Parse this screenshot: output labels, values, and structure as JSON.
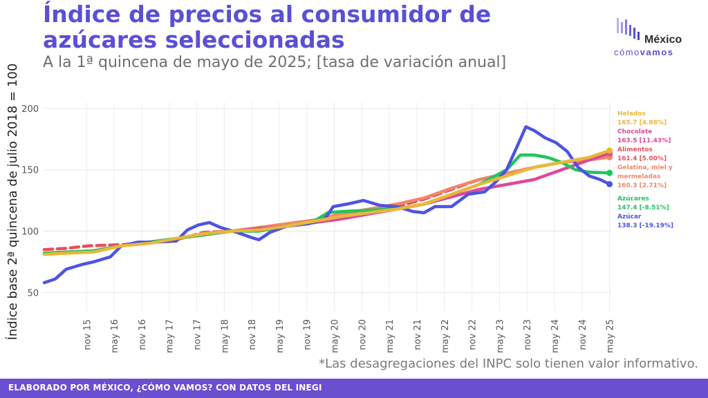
{
  "header": {
    "title_line1": "Índice de precios al consumidor de",
    "title_line2": "azúcares seleccionadas",
    "subtitle": "A la 1ª quincena de mayo de 2025; [tasa de variación anual]"
  },
  "logo": {
    "name_top": "México",
    "name_bottom_a": "cómo",
    "name_bottom_b": "vamos",
    "icon": "bar-waves-icon"
  },
  "note": "*Las desagregaciones del INPC solo tienen valor informativo.",
  "footer": "ELABORADO POR MÉXICO, ¿CÓMO VAMOS? CON DATOS DEL INEGI",
  "colors": {
    "Helados": "#e8b83a",
    "Chocolate": "#e0479b",
    "Alimentos": "#e84f5e",
    "Gelatina, miel y mermeladas": "#f0876a",
    "Azúcares": "#22c55e",
    "Azúcar": "#4c54e0",
    "brand": "#5b4fd6"
  },
  "chart_data": {
    "type": "line",
    "title": "Índice de precios al consumidor de azúcares seleccionadas",
    "subtitle": "A la 1ª quincena de mayo de 2025; [tasa de variación anual]",
    "ylabel": "Índice base 2ª quincena de julio 2018 = 100",
    "xlabel": "",
    "ylim": [
      35,
      205
    ],
    "yticks": [
      50,
      100,
      150,
      200
    ],
    "x_range": [
      2015.1,
      2025.4
    ],
    "x_ticks": [
      {
        "label": "nov 15",
        "t": 2015.87
      },
      {
        "label": "may 16",
        "t": 2016.37
      },
      {
        "label": "nov 16",
        "t": 2016.87
      },
      {
        "label": "may 17",
        "t": 2017.37
      },
      {
        "label": "nov 17",
        "t": 2017.87
      },
      {
        "label": "may 18",
        "t": 2018.37
      },
      {
        "label": "nov 18",
        "t": 2018.87
      },
      {
        "label": "may 19",
        "t": 2019.37
      },
      {
        "label": "nov 19",
        "t": 2019.87
      },
      {
        "label": "may 20",
        "t": 2020.37
      },
      {
        "label": "nov 20",
        "t": 2020.87
      },
      {
        "label": "may 21",
        "t": 2021.37
      },
      {
        "label": "nov 21",
        "t": 2021.87
      },
      {
        "label": "may 22",
        "t": 2022.37
      },
      {
        "label": "nov 22",
        "t": 2022.87
      },
      {
        "label": "may 23",
        "t": 2023.37
      },
      {
        "label": "nov 23",
        "t": 2023.87
      },
      {
        "label": "may 24",
        "t": 2024.37
      },
      {
        "label": "nov 24",
        "t": 2024.87
      },
      {
        "label": "may 25",
        "t": 2025.37
      }
    ],
    "grid": true,
    "legend_position": "right",
    "series": [
      {
        "name": "Alimentos",
        "label_value": "161.4 [5.00%]",
        "dashed": true,
        "points": [
          [
            2015.1,
            85
          ],
          [
            2015.5,
            86
          ],
          [
            2015.9,
            88
          ],
          [
            2016.5,
            89
          ],
          [
            2016.9,
            90
          ],
          [
            2017.5,
            93
          ],
          [
            2018.0,
            99
          ],
          [
            2018.5,
            100
          ],
          [
            2019.0,
            102
          ],
          [
            2019.5,
            104
          ],
          [
            2020.0,
            107
          ],
          [
            2020.5,
            110
          ],
          [
            2021.0,
            115
          ],
          [
            2021.5,
            120
          ],
          [
            2022.0,
            126
          ],
          [
            2022.5,
            134
          ],
          [
            2023.0,
            142
          ],
          [
            2023.5,
            147
          ],
          [
            2024.0,
            152
          ],
          [
            2024.5,
            156
          ],
          [
            2025.0,
            159
          ],
          [
            2025.37,
            161.4
          ]
        ]
      },
      {
        "name": "Gelatina, miel y mermeladas",
        "label_value": "160.3 [2.71%]",
        "dashed": false,
        "points": [
          [
            2015.1,
            82
          ],
          [
            2015.5,
            83
          ],
          [
            2016.0,
            84
          ],
          [
            2016.5,
            88
          ],
          [
            2017.0,
            91
          ],
          [
            2017.5,
            94
          ],
          [
            2018.0,
            98
          ],
          [
            2018.5,
            100
          ],
          [
            2019.0,
            103
          ],
          [
            2019.5,
            106
          ],
          [
            2020.0,
            109
          ],
          [
            2020.5,
            114
          ],
          [
            2021.0,
            118
          ],
          [
            2021.5,
            122
          ],
          [
            2022.0,
            127
          ],
          [
            2022.5,
            135
          ],
          [
            2023.0,
            142
          ],
          [
            2023.5,
            147
          ],
          [
            2024.0,
            152
          ],
          [
            2024.5,
            156
          ],
          [
            2025.0,
            158
          ],
          [
            2025.37,
            160.3
          ]
        ]
      },
      {
        "name": "Chocolate",
        "label_value": "163.5 [11.43%]",
        "dashed": false,
        "points": [
          [
            2015.1,
            82
          ],
          [
            2016.0,
            84
          ],
          [
            2016.5,
            88
          ],
          [
            2017.0,
            91
          ],
          [
            2017.5,
            94
          ],
          [
            2018.0,
            97
          ],
          [
            2018.5,
            100
          ],
          [
            2019.0,
            102
          ],
          [
            2019.5,
            104
          ],
          [
            2020.0,
            107
          ],
          [
            2020.5,
            110
          ],
          [
            2021.0,
            114
          ],
          [
            2021.5,
            118
          ],
          [
            2022.0,
            122
          ],
          [
            2022.5,
            128
          ],
          [
            2023.0,
            134
          ],
          [
            2023.5,
            138
          ],
          [
            2024.0,
            142
          ],
          [
            2024.5,
            150
          ],
          [
            2025.0,
            158
          ],
          [
            2025.37,
            163.5
          ]
        ]
      },
      {
        "name": "Azúcares",
        "label_value": "147.4 [-8.51%]",
        "dashed": false,
        "points": [
          [
            2015.1,
            82
          ],
          [
            2016.0,
            84
          ],
          [
            2016.5,
            88
          ],
          [
            2017.0,
            91
          ],
          [
            2017.5,
            94
          ],
          [
            2018.0,
            97
          ],
          [
            2018.5,
            100
          ],
          [
            2019.0,
            100
          ],
          [
            2019.5,
            104
          ],
          [
            2020.0,
            108
          ],
          [
            2020.25,
            115
          ],
          [
            2020.5,
            116
          ],
          [
            2021.0,
            117
          ],
          [
            2021.5,
            118
          ],
          [
            2022.0,
            122
          ],
          [
            2022.5,
            130
          ],
          [
            2023.0,
            138
          ],
          [
            2023.5,
            150
          ],
          [
            2023.75,
            162
          ],
          [
            2024.0,
            162
          ],
          [
            2024.25,
            160
          ],
          [
            2024.5,
            156
          ],
          [
            2024.75,
            150
          ],
          [
            2025.0,
            148
          ],
          [
            2025.37,
            147.4
          ]
        ]
      },
      {
        "name": "Azúcar",
        "label_value": "138.3 [-19.19%]",
        "dashed": false,
        "points": [
          [
            2015.1,
            58
          ],
          [
            2015.3,
            61
          ],
          [
            2015.5,
            69
          ],
          [
            2015.8,
            73
          ],
          [
            2016.0,
            75
          ],
          [
            2016.3,
            79
          ],
          [
            2016.5,
            88
          ],
          [
            2016.8,
            91
          ],
          [
            2017.1,
            91
          ],
          [
            2017.5,
            92
          ],
          [
            2017.7,
            101
          ],
          [
            2017.9,
            105
          ],
          [
            2018.1,
            107
          ],
          [
            2018.3,
            103
          ],
          [
            2018.6,
            99
          ],
          [
            2018.85,
            95
          ],
          [
            2019.0,
            93
          ],
          [
            2019.2,
            99
          ],
          [
            2019.5,
            104
          ],
          [
            2019.9,
            106
          ],
          [
            2020.2,
            110
          ],
          [
            2020.35,
            120
          ],
          [
            2020.6,
            122
          ],
          [
            2020.9,
            125
          ],
          [
            2021.2,
            121
          ],
          [
            2021.5,
            120
          ],
          [
            2021.8,
            116
          ],
          [
            2022.0,
            115
          ],
          [
            2022.2,
            120
          ],
          [
            2022.5,
            120
          ],
          [
            2022.8,
            130
          ],
          [
            2023.1,
            132
          ],
          [
            2023.3,
            140
          ],
          [
            2023.5,
            150
          ],
          [
            2023.7,
            170
          ],
          [
            2023.85,
            185
          ],
          [
            2024.0,
            182
          ],
          [
            2024.2,
            176
          ],
          [
            2024.4,
            172
          ],
          [
            2024.6,
            165
          ],
          [
            2024.8,
            152
          ],
          [
            2025.0,
            145
          ],
          [
            2025.2,
            142
          ],
          [
            2025.37,
            138.3
          ]
        ]
      },
      {
        "name": "Helados",
        "label_value": "165.7 [4.88%]",
        "dashed": false,
        "points": [
          [
            2015.1,
            81
          ],
          [
            2015.5,
            82
          ],
          [
            2016.0,
            83
          ],
          [
            2016.5,
            88
          ],
          [
            2017.0,
            90
          ],
          [
            2017.5,
            94
          ],
          [
            2018.0,
            98
          ],
          [
            2018.5,
            100
          ],
          [
            2019.0,
            101
          ],
          [
            2019.5,
            104
          ],
          [
            2020.0,
            108
          ],
          [
            2020.5,
            112
          ],
          [
            2021.0,
            115
          ],
          [
            2021.5,
            118
          ],
          [
            2022.0,
            122
          ],
          [
            2022.5,
            130
          ],
          [
            2023.0,
            138
          ],
          [
            2023.5,
            145
          ],
          [
            2024.0,
            152
          ],
          [
            2024.5,
            156
          ],
          [
            2025.0,
            160
          ],
          [
            2025.37,
            165.7
          ]
        ]
      }
    ]
  }
}
